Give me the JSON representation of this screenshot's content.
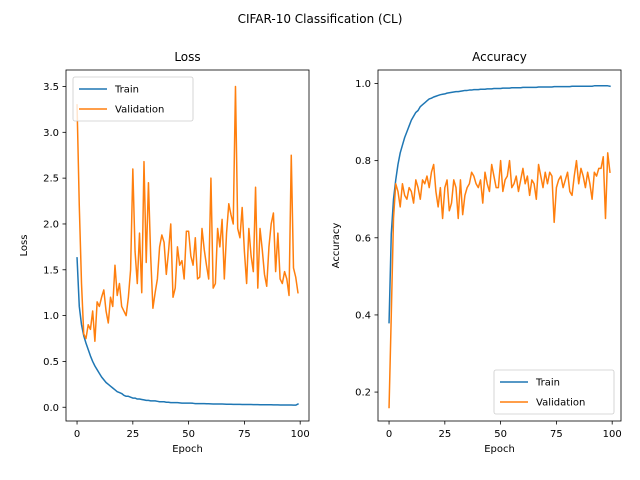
{
  "figure": {
    "suptitle": "CIFAR-10 Classification (CL)"
  },
  "colors": {
    "train": "#1f77b4",
    "validation": "#ff7f0e"
  },
  "chart_data": [
    {
      "type": "line",
      "title": "Loss",
      "xlabel": "Epoch",
      "ylabel": "Loss",
      "xlim": [
        -4.95,
        103.95
      ],
      "ylim": [
        -0.15,
        3.68
      ],
      "xticks": [
        0,
        25,
        50,
        75,
        100
      ],
      "yticks": [
        0.0,
        0.5,
        1.0,
        1.5,
        2.0,
        2.5,
        3.0,
        3.5
      ],
      "ytick_labels": [
        "0.0",
        "0.5",
        "1.0",
        "1.5",
        "2.0",
        "2.5",
        "3.0",
        "3.5"
      ],
      "grid": false,
      "legend": {
        "placement": "upper left",
        "entries": [
          "Train",
          "Validation"
        ]
      },
      "x": [
        0,
        1,
        2,
        3,
        4,
        5,
        6,
        7,
        8,
        9,
        10,
        11,
        12,
        13,
        14,
        15,
        16,
        17,
        18,
        19,
        20,
        21,
        22,
        23,
        24,
        25,
        26,
        27,
        28,
        29,
        30,
        31,
        32,
        33,
        34,
        35,
        36,
        37,
        38,
        39,
        40,
        41,
        42,
        43,
        44,
        45,
        46,
        47,
        48,
        49,
        50,
        51,
        52,
        53,
        54,
        55,
        56,
        57,
        58,
        59,
        60,
        61,
        62,
        63,
        64,
        65,
        66,
        67,
        68,
        69,
        70,
        71,
        72,
        73,
        74,
        75,
        76,
        77,
        78,
        79,
        80,
        81,
        82,
        83,
        84,
        85,
        86,
        87,
        88,
        89,
        90,
        91,
        92,
        93,
        94,
        95,
        96,
        97,
        98,
        99
      ],
      "series": [
        {
          "name": "Train",
          "values": [
            1.63,
            1.1,
            0.9,
            0.78,
            0.7,
            0.63,
            0.56,
            0.5,
            0.45,
            0.41,
            0.37,
            0.33,
            0.3,
            0.27,
            0.25,
            0.23,
            0.21,
            0.19,
            0.17,
            0.16,
            0.15,
            0.13,
            0.12,
            0.12,
            0.11,
            0.1,
            0.1,
            0.09,
            0.09,
            0.085,
            0.08,
            0.075,
            0.075,
            0.07,
            0.07,
            0.07,
            0.065,
            0.06,
            0.06,
            0.06,
            0.055,
            0.055,
            0.05,
            0.05,
            0.05,
            0.05,
            0.048,
            0.045,
            0.045,
            0.045,
            0.045,
            0.045,
            0.043,
            0.04,
            0.04,
            0.04,
            0.04,
            0.04,
            0.038,
            0.038,
            0.037,
            0.036,
            0.036,
            0.035,
            0.035,
            0.035,
            0.034,
            0.033,
            0.033,
            0.033,
            0.032,
            0.032,
            0.031,
            0.031,
            0.03,
            0.03,
            0.03,
            0.03,
            0.03,
            0.029,
            0.029,
            0.029,
            0.028,
            0.028,
            0.028,
            0.027,
            0.027,
            0.027,
            0.026,
            0.026,
            0.026,
            0.025,
            0.025,
            0.025,
            0.025,
            0.024,
            0.024,
            0.023,
            0.023,
            0.035
          ]
        },
        {
          "name": "Validation",
          "values": [
            3.3,
            2.2,
            1.35,
            0.8,
            0.75,
            0.9,
            0.85,
            1.05,
            0.72,
            1.15,
            1.1,
            1.2,
            1.28,
            1.05,
            0.92,
            1.2,
            1.1,
            1.55,
            1.22,
            1.35,
            1.1,
            1.05,
            1.0,
            1.2,
            1.5,
            2.6,
            1.7,
            1.35,
            1.9,
            1.25,
            2.68,
            1.58,
            2.45,
            1.65,
            1.08,
            1.25,
            1.4,
            1.75,
            1.88,
            1.8,
            1.45,
            1.7,
            2.0,
            1.2,
            1.3,
            1.75,
            1.55,
            1.6,
            1.4,
            1.92,
            1.92,
            1.65,
            1.55,
            1.85,
            1.4,
            1.42,
            1.95,
            1.72,
            1.55,
            1.4,
            2.5,
            1.3,
            1.35,
            1.95,
            1.75,
            2.05,
            1.4,
            1.9,
            2.22,
            2.1,
            2.0,
            3.5,
            1.95,
            1.85,
            2.18,
            1.7,
            1.35,
            1.95,
            1.65,
            1.48,
            2.4,
            1.3,
            1.95,
            1.72,
            1.45,
            1.32,
            1.75,
            2.0,
            2.12,
            1.48,
            1.9,
            1.4,
            1.35,
            1.48,
            1.4,
            1.22,
            2.75,
            1.52,
            1.42,
            1.25
          ]
        }
      ]
    },
    {
      "type": "line",
      "title": "Accuracy",
      "xlabel": "Epoch",
      "ylabel": "Accuracy",
      "xlim": [
        -4.95,
        103.95
      ],
      "ylim": [
        0.125,
        1.035
      ],
      "xticks": [
        0,
        25,
        50,
        75,
        100
      ],
      "yticks": [
        0.2,
        0.4,
        0.6,
        0.8,
        1.0
      ],
      "ytick_labels": [
        "0.2",
        "0.4",
        "0.6",
        "0.8",
        "1.0"
      ],
      "grid": false,
      "legend": {
        "placement": "lower right",
        "entries": [
          "Train",
          "Validation"
        ]
      },
      "x": [
        0,
        1,
        2,
        3,
        4,
        5,
        6,
        7,
        8,
        9,
        10,
        11,
        12,
        13,
        14,
        15,
        16,
        17,
        18,
        19,
        20,
        21,
        22,
        23,
        24,
        25,
        26,
        27,
        28,
        29,
        30,
        31,
        32,
        33,
        34,
        35,
        36,
        37,
        38,
        39,
        40,
        41,
        42,
        43,
        44,
        45,
        46,
        47,
        48,
        49,
        50,
        51,
        52,
        53,
        54,
        55,
        56,
        57,
        58,
        59,
        60,
        61,
        62,
        63,
        64,
        65,
        66,
        67,
        68,
        69,
        70,
        71,
        72,
        73,
        74,
        75,
        76,
        77,
        78,
        79,
        80,
        81,
        82,
        83,
        84,
        85,
        86,
        87,
        88,
        89,
        90,
        91,
        92,
        93,
        94,
        95,
        96,
        97,
        98,
        99
      ],
      "series": [
        {
          "name": "Train",
          "values": [
            0.38,
            0.61,
            0.7,
            0.75,
            0.79,
            0.82,
            0.84,
            0.86,
            0.875,
            0.89,
            0.905,
            0.915,
            0.925,
            0.93,
            0.94,
            0.945,
            0.95,
            0.955,
            0.96,
            0.962,
            0.965,
            0.967,
            0.969,
            0.971,
            0.972,
            0.973,
            0.975,
            0.976,
            0.977,
            0.978,
            0.979,
            0.979,
            0.98,
            0.981,
            0.982,
            0.982,
            0.983,
            0.983,
            0.984,
            0.984,
            0.984,
            0.985,
            0.985,
            0.985,
            0.986,
            0.986,
            0.986,
            0.987,
            0.987,
            0.987,
            0.987,
            0.988,
            0.988,
            0.988,
            0.988,
            0.989,
            0.989,
            0.989,
            0.989,
            0.989,
            0.99,
            0.99,
            0.99,
            0.99,
            0.99,
            0.99,
            0.99,
            0.991,
            0.991,
            0.991,
            0.991,
            0.991,
            0.991,
            0.991,
            0.992,
            0.992,
            0.992,
            0.992,
            0.992,
            0.992,
            0.992,
            0.992,
            0.993,
            0.993,
            0.993,
            0.993,
            0.993,
            0.993,
            0.993,
            0.993,
            0.993,
            0.993,
            0.994,
            0.994,
            0.994,
            0.994,
            0.994,
            0.994,
            0.994,
            0.993
          ]
        },
        {
          "name": "Validation",
          "values": [
            0.16,
            0.4,
            0.65,
            0.74,
            0.72,
            0.68,
            0.74,
            0.71,
            0.7,
            0.73,
            0.72,
            0.69,
            0.75,
            0.73,
            0.7,
            0.75,
            0.74,
            0.76,
            0.73,
            0.77,
            0.79,
            0.72,
            0.68,
            0.73,
            0.65,
            0.73,
            0.75,
            0.67,
            0.69,
            0.75,
            0.73,
            0.65,
            0.75,
            0.66,
            0.71,
            0.73,
            0.74,
            0.77,
            0.76,
            0.74,
            0.73,
            0.75,
            0.69,
            0.77,
            0.74,
            0.72,
            0.79,
            0.76,
            0.73,
            0.73,
            0.8,
            0.72,
            0.75,
            0.76,
            0.8,
            0.73,
            0.74,
            0.76,
            0.72,
            0.75,
            0.78,
            0.74,
            0.76,
            0.71,
            0.75,
            0.74,
            0.7,
            0.79,
            0.76,
            0.73,
            0.77,
            0.74,
            0.77,
            0.76,
            0.64,
            0.73,
            0.75,
            0.76,
            0.73,
            0.75,
            0.77,
            0.72,
            0.71,
            0.76,
            0.8,
            0.74,
            0.78,
            0.76,
            0.73,
            0.77,
            0.74,
            0.7,
            0.77,
            0.76,
            0.78,
            0.78,
            0.81,
            0.65,
            0.82,
            0.77
          ]
        }
      ]
    }
  ]
}
